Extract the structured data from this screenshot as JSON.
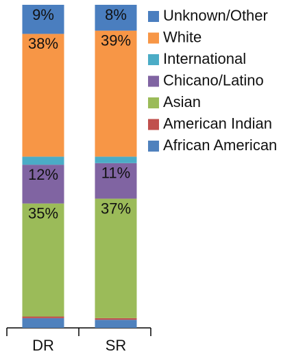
{
  "chart_data": {
    "type": "stacked_bar",
    "categories": [
      "DR",
      "SR"
    ],
    "ylim": [
      0,
      100
    ],
    "series": [
      {
        "name": "African American",
        "color": "#4f81bd",
        "values": [
          3,
          2.5
        ]
      },
      {
        "name": "American Indian",
        "color": "#c0504d",
        "values": [
          0.5,
          0.5
        ]
      },
      {
        "name": "Asian",
        "color": "#9bbb59",
        "values": [
          35,
          37
        ],
        "value_labels": [
          "35%",
          "37%"
        ]
      },
      {
        "name": "Chicano/Latino",
        "color": "#8064a2",
        "values": [
          12,
          11
        ],
        "value_labels": [
          "12%",
          "11%"
        ]
      },
      {
        "name": "International",
        "color": "#4bacc6",
        "values": [
          2.5,
          2
        ]
      },
      {
        "name": "White",
        "color": "#f79646",
        "values": [
          38,
          39
        ],
        "value_labels": [
          "38%",
          "39%"
        ]
      },
      {
        "name": "Unknown/Other",
        "color": "#4a7ebf",
        "values": [
          9,
          8
        ],
        "value_labels": [
          "9%",
          "8%"
        ]
      }
    ]
  }
}
